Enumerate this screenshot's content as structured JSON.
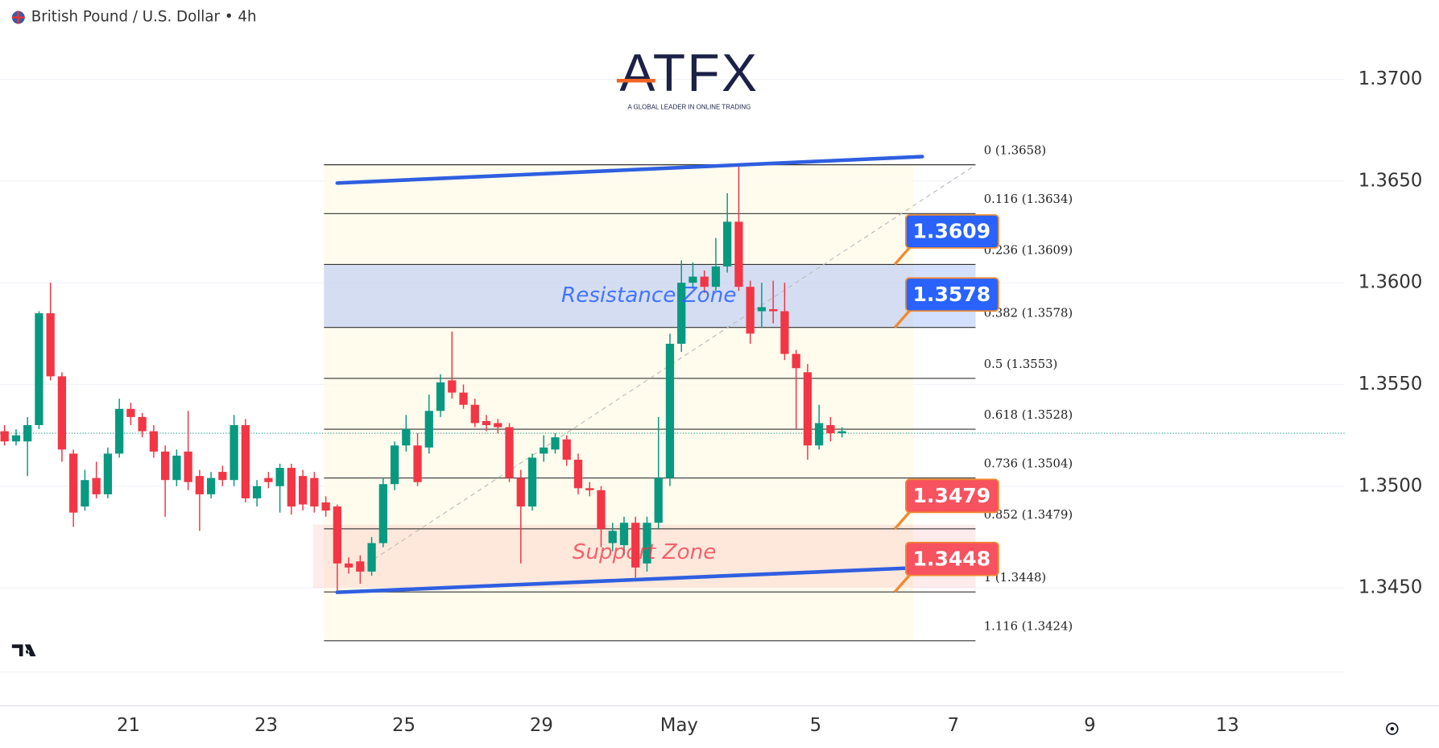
{
  "chart_data": {
    "type": "candlestick",
    "title": "British Pound / U.S. Dollar • 4h",
    "brand": "ATFX",
    "brand_tagline": "A GLOBAL LEADER IN ONLINE TRADING",
    "up_color": "#089981",
    "down_color": "#f23645",
    "open": [
      1.3527,
      1.3522,
      1.3522,
      1.353,
      1.3585,
      1.3554,
      1.3516,
      1.349,
      1.3504,
      1.3496,
      1.3516,
      1.3538,
      1.3534,
      1.3527,
      1.3517,
      1.3503,
      1.3517,
      1.3505,
      1.3496,
      1.3507,
      1.3503,
      1.353,
      1.3494,
      1.3504,
      1.35,
      1.3509,
      1.3505,
      1.3504,
      1.3492,
      1.349,
      1.3462,
      1.3463,
      1.3458,
      1.3472,
      1.3501,
      1.352,
      1.352,
      1.3519,
      1.3537,
      1.3552,
      1.3546,
      1.354,
      1.3532,
      1.3531,
      1.3529,
      1.3504,
      1.349,
      1.3516,
      1.3518,
      1.3523,
      1.3513,
      1.3499,
      1.3498,
      1.3472,
      1.3471,
      1.3482,
      1.3462,
      1.3482,
      1.3504,
      1.357,
      1.36,
      1.3603,
      1.3598,
      1.3608,
      1.363,
      1.3598,
      1.3586,
      1.3587,
      1.3586,
      1.3565,
      1.3556,
      1.352,
      1.353,
      1.3526
    ],
    "high": [
      1.353,
      1.3528,
      1.3534,
      1.3586,
      1.36,
      1.3556,
      1.3518,
      1.3508,
      1.3512,
      1.3519,
      1.3543,
      1.3541,
      1.3536,
      1.353,
      1.352,
      1.3518,
      1.3537,
      1.3508,
      1.3507,
      1.351,
      1.3535,
      1.3533,
      1.3503,
      1.3507,
      1.3511,
      1.3511,
      1.3508,
      1.3507,
      1.3495,
      1.3491,
      1.3465,
      1.3466,
      1.3475,
      1.3504,
      1.3522,
      1.3535,
      1.3526,
      1.3545,
      1.3555,
      1.3576,
      1.355,
      1.3543,
      1.3535,
      1.3533,
      1.3531,
      1.3508,
      1.3516,
      1.3525,
      1.3526,
      1.3525,
      1.3516,
      1.3502,
      1.35,
      1.3482,
      1.3485,
      1.3485,
      1.3485,
      1.3534,
      1.3575,
      1.3611,
      1.361,
      1.3606,
      1.3622,
      1.3644,
      1.3658,
      1.3601,
      1.36,
      1.3601,
      1.36,
      1.3567,
      1.356,
      1.354,
      1.3534,
      1.3529
    ],
    "low": [
      1.352,
      1.352,
      1.3505,
      1.3528,
      1.3552,
      1.3512,
      1.348,
      1.3488,
      1.3494,
      1.3494,
      1.3514,
      1.353,
      1.3524,
      1.3514,
      1.3485,
      1.35,
      1.3498,
      1.3478,
      1.3494,
      1.35,
      1.35,
      1.3492,
      1.349,
      1.3499,
      1.3487,
      1.3486,
      1.3488,
      1.3487,
      1.3485,
      1.3447,
      1.3457,
      1.3452,
      1.3456,
      1.347,
      1.3498,
      1.3517,
      1.35,
      1.3516,
      1.3534,
      1.3543,
      1.3538,
      1.3529,
      1.3527,
      1.3526,
      1.3502,
      1.3462,
      1.3488,
      1.3512,
      1.3516,
      1.351,
      1.3496,
      1.3495,
      1.347,
      1.3468,
      1.3466,
      1.3455,
      1.3458,
      1.3479,
      1.35,
      1.3566,
      1.3597,
      1.3595,
      1.3596,
      1.3605,
      1.3596,
      1.357,
      1.3578,
      1.358,
      1.3562,
      1.3528,
      1.3513,
      1.3518,
      1.3522,
      1.3524
    ],
    "close": [
      1.3522,
      1.3525,
      1.353,
      1.3585,
      1.3554,
      1.3518,
      1.3487,
      1.3503,
      1.3496,
      1.3516,
      1.3538,
      1.3534,
      1.3527,
      1.3517,
      1.3503,
      1.3515,
      1.3502,
      1.3496,
      1.3504,
      1.3503,
      1.353,
      1.3494,
      1.35,
      1.3502,
      1.3509,
      1.349,
      1.3491,
      1.349,
      1.3488,
      1.3462,
      1.346,
      1.3458,
      1.3472,
      1.3501,
      1.352,
      1.3528,
      1.3502,
      1.3537,
      1.3551,
      1.3546,
      1.354,
      1.3531,
      1.353,
      1.3529,
      1.3504,
      1.349,
      1.3514,
      1.3519,
      1.3524,
      1.3513,
      1.3499,
      1.3498,
      1.3479,
      1.3478,
      1.3482,
      1.346,
      1.3482,
      1.3504,
      1.357,
      1.36,
      1.3603,
      1.3598,
      1.3608,
      1.363,
      1.3598,
      1.3575,
      1.3588,
      1.3586,
      1.3565,
      1.3558,
      1.352,
      1.3531,
      1.3526,
      1.3527
    ],
    "xlim": [
      -0.4,
      116.8
    ],
    "xticks": [
      {
        "value": 10.8,
        "label": "21"
      },
      {
        "value": 22.8,
        "label": "23"
      },
      {
        "value": 34.8,
        "label": "25"
      },
      {
        "value": 46.8,
        "label": "29"
      },
      {
        "value": 58.8,
        "label": "May"
      },
      {
        "value": 70.7,
        "label": "5"
      },
      {
        "value": 82.7,
        "label": "7"
      },
      {
        "value": 94.6,
        "label": "9"
      },
      {
        "value": 106.6,
        "label": "13"
      }
    ],
    "ylim": [
      1.3392,
      1.3739
    ],
    "yticks": [
      {
        "value": 1.345,
        "label": "1.3450"
      },
      {
        "value": 1.35,
        "label": "1.3500"
      },
      {
        "value": 1.355,
        "label": "1.3550"
      },
      {
        "value": 1.36,
        "label": "1.3600"
      },
      {
        "value": 1.365,
        "label": "1.3650"
      },
      {
        "value": 1.37,
        "label": "1.3700"
      }
    ],
    "grid": true,
    "last_price": 1.3526,
    "fib_levels": [
      {
        "value": 1.3658,
        "label": "0 (1.3658)"
      },
      {
        "value": 1.3634,
        "label": "0.116 (1.3634)"
      },
      {
        "value": 1.3609,
        "label": "0.236 (1.3609)"
      },
      {
        "value": 1.3578,
        "label": "0.382 (1.3578)"
      },
      {
        "value": 1.3553,
        "label": "0.5 (1.3553)"
      },
      {
        "value": 1.3528,
        "label": "0.618 (1.3528)"
      },
      {
        "value": 1.3504,
        "label": "0.736 (1.3504)"
      },
      {
        "value": 1.3479,
        "label": "0.852 (1.3479)"
      },
      {
        "value": 1.3448,
        "label": "1 (1.3448)"
      },
      {
        "value": 1.3424,
        "label": "1.116 (1.3424)"
      }
    ],
    "zones": [
      {
        "label": "Resistance Zone",
        "range": [
          1.3578,
          1.3609
        ],
        "color": "#2962ff"
      },
      {
        "label": "Support Zone",
        "range": [
          1.345,
          1.3481
        ],
        "color": "#f23645"
      }
    ],
    "price_tags": [
      {
        "value": 1.3609,
        "color": "#2962ff"
      },
      {
        "value": 1.3578,
        "color": "#2962ff"
      },
      {
        "value": 1.3479,
        "color": "#f7525f"
      },
      {
        "value": 1.3448,
        "color": "#f7525f"
      }
    ],
    "trend_lines": [
      {
        "start": [
          29,
          1.3649
        ],
        "end": [
          80,
          1.3662
        ],
        "color": "#2f5fe0"
      },
      {
        "start": [
          29,
          1.34478
        ],
        "end": [
          80,
          1.346
        ],
        "color": "#2f5fe0"
      }
    ]
  }
}
